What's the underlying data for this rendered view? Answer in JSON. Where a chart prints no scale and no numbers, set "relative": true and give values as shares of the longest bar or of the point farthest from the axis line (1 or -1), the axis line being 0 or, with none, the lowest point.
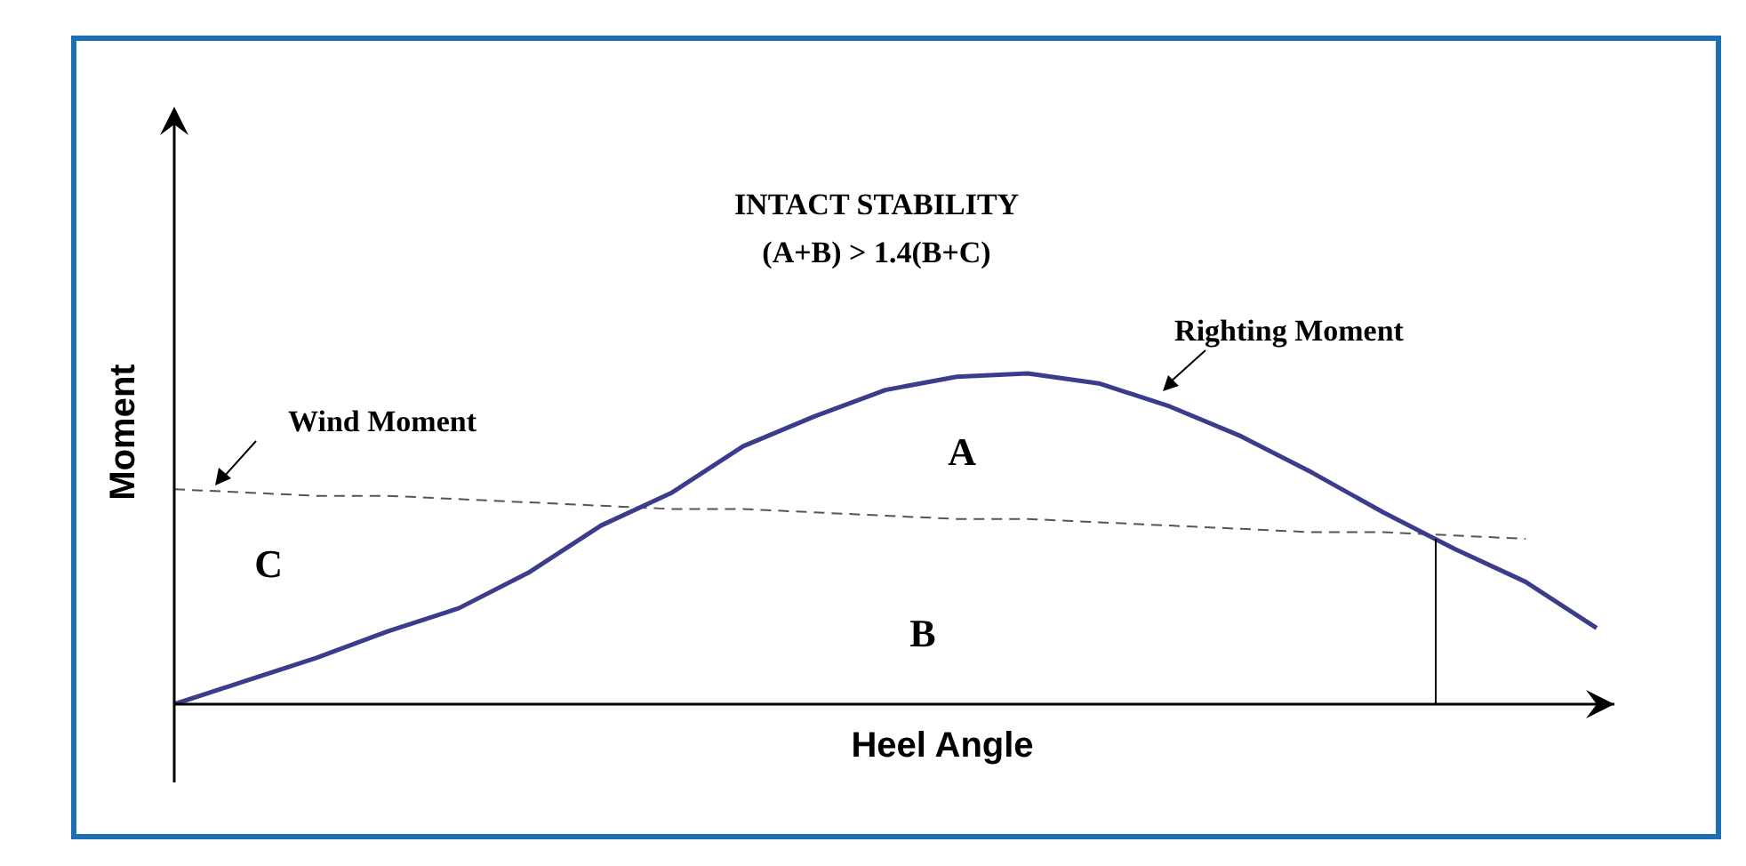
{
  "chart_data": {
    "type": "line",
    "relative": true,
    "title": "INTACT STABILITY",
    "subtitle": "(A+B) > 1.4(B+C)",
    "xlabel": "Heel Angle",
    "ylabel": "Moment",
    "annotations": [
      "A",
      "B",
      "C"
    ],
    "categories": [
      null,
      null,
      null,
      null,
      null,
      null,
      null,
      null,
      null,
      null,
      null,
      null,
      null,
      null,
      null,
      null,
      null,
      null,
      null,
      null,
      null
    ],
    "legend": false,
    "marker": "none",
    "series": [
      {
        "name": "Righting Moment",
        "color": "#3c3c8c",
        "line_style": "solid",
        "values": [
          0,
          0.07,
          0.14,
          0.22,
          0.29,
          0.4,
          0.54,
          0.64,
          0.78,
          0.87,
          0.95,
          0.99,
          1.0,
          0.97,
          0.9,
          0.81,
          0.7,
          0.58,
          0.47,
          0.37,
          0.23
        ]
      },
      {
        "name": "Wind Moment",
        "color": "#555555",
        "line_style": "dashed",
        "values": [
          0.65,
          0.64,
          0.63,
          0.63,
          0.62,
          0.61,
          0.6,
          0.59,
          0.59,
          0.58,
          0.57,
          0.56,
          0.56,
          0.55,
          0.54,
          0.53,
          0.52,
          0.52,
          0.51,
          0.5,
          null
        ]
      }
    ]
  }
}
